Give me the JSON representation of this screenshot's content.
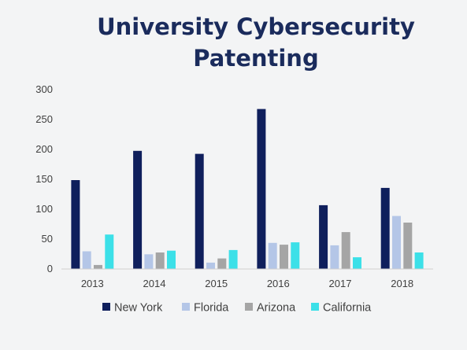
{
  "chart_data": {
    "type": "bar",
    "title_lines": [
      "University Cybersecurity",
      "Patenting"
    ],
    "categories": [
      "2013",
      "2014",
      "2015",
      "2016",
      "2017",
      "2018"
    ],
    "ylim": [
      0,
      300
    ],
    "yticks": [
      0,
      50,
      100,
      150,
      200,
      250,
      300
    ],
    "grid": false,
    "legend_position": "bottom",
    "series": [
      {
        "name": "New York",
        "color": "#0f1f5c",
        "values": [
          148,
          197,
          192,
          267,
          106,
          135
        ]
      },
      {
        "name": "Florida",
        "color": "#b4c6e7",
        "values": [
          29,
          24,
          10,
          43,
          39,
          88
        ]
      },
      {
        "name": "Arizona",
        "color": "#a5a5a5",
        "values": [
          6,
          27,
          17,
          40,
          61,
          77
        ]
      },
      {
        "name": "California",
        "color": "#3ce0e8",
        "values": [
          57,
          30,
          31,
          44,
          19,
          27
        ]
      }
    ]
  }
}
